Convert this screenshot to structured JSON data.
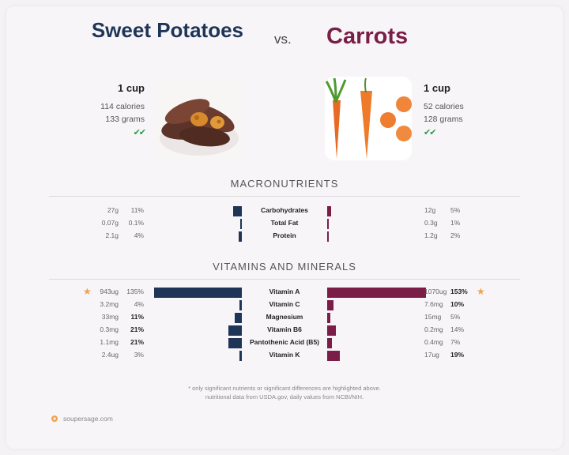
{
  "header": {
    "left_title": "Sweet Potatoes",
    "vs": "vs.",
    "right_title": "Carrots"
  },
  "serving": {
    "left": {
      "cup": "1 cup",
      "calories": "114 calories",
      "grams": "133 grams",
      "checks": "✔✔"
    },
    "right": {
      "cup": "1 cup",
      "calories": "52 calories",
      "grams": "128 grams",
      "checks": "✔✔"
    }
  },
  "sections": {
    "macros": "MACRONUTRIENTS",
    "vitamins": "VITAMINS AND MINERALS"
  },
  "footnote": {
    "line1": "* only significant nutrients or significant differences are highlighted above.",
    "line2": "nutritional data from USDA.gov, daily values from NCBI/NIH."
  },
  "brand": "soupersage.com",
  "colors": {
    "sweet_potato": "#1f3557",
    "carrot": "#7a1e48",
    "star": "#f0a24d"
  },
  "chart_data": [
    {
      "type": "bar",
      "title": "MACRONUTRIENTS",
      "categories": [
        "Carbohydrates",
        "Total Fat",
        "Protein"
      ],
      "series": [
        {
          "name": "Sweet Potatoes",
          "amounts": [
            "27g",
            "0.07g",
            "2.1g"
          ],
          "percents": [
            "11%",
            "0.1%",
            "4%"
          ],
          "values": [
            11,
            0.1,
            4
          ]
        },
        {
          "name": "Carrots",
          "amounts": [
            "12g",
            "0.3g",
            "1.2g"
          ],
          "percents": [
            "5%",
            "1%",
            "2%"
          ],
          "values": [
            5,
            1,
            2
          ]
        }
      ]
    },
    {
      "type": "bar",
      "title": "VITAMINS AND MINERALS",
      "categories": [
        "Vitamin A",
        "Vitamin C",
        "Magnesium",
        "Vitamin B6",
        "Pantothenic Acid (B5)",
        "Vitamin K"
      ],
      "series": [
        {
          "name": "Sweet Potatoes",
          "amounts": [
            "943ug",
            "3.2mg",
            "33mg",
            "0.3mg",
            "1.1mg",
            "2.4ug"
          ],
          "percents": [
            "135%",
            "4%",
            "11%",
            "21%",
            "21%",
            "3%"
          ],
          "values": [
            135,
            4,
            11,
            21,
            21,
            3
          ],
          "bold": [
            false,
            false,
            true,
            true,
            true,
            false
          ]
        },
        {
          "name": "Carrots",
          "amounts": [
            "1070ug",
            "7.6mg",
            "15mg",
            "0.2mg",
            "0.4mg",
            "17ug"
          ],
          "percents": [
            "153%",
            "10%",
            "5%",
            "14%",
            "7%",
            "19%"
          ],
          "values": [
            153,
            10,
            5,
            14,
            7,
            19
          ],
          "bold": [
            true,
            true,
            false,
            false,
            false,
            true
          ]
        }
      ],
      "highlight": "Vitamin A"
    }
  ]
}
